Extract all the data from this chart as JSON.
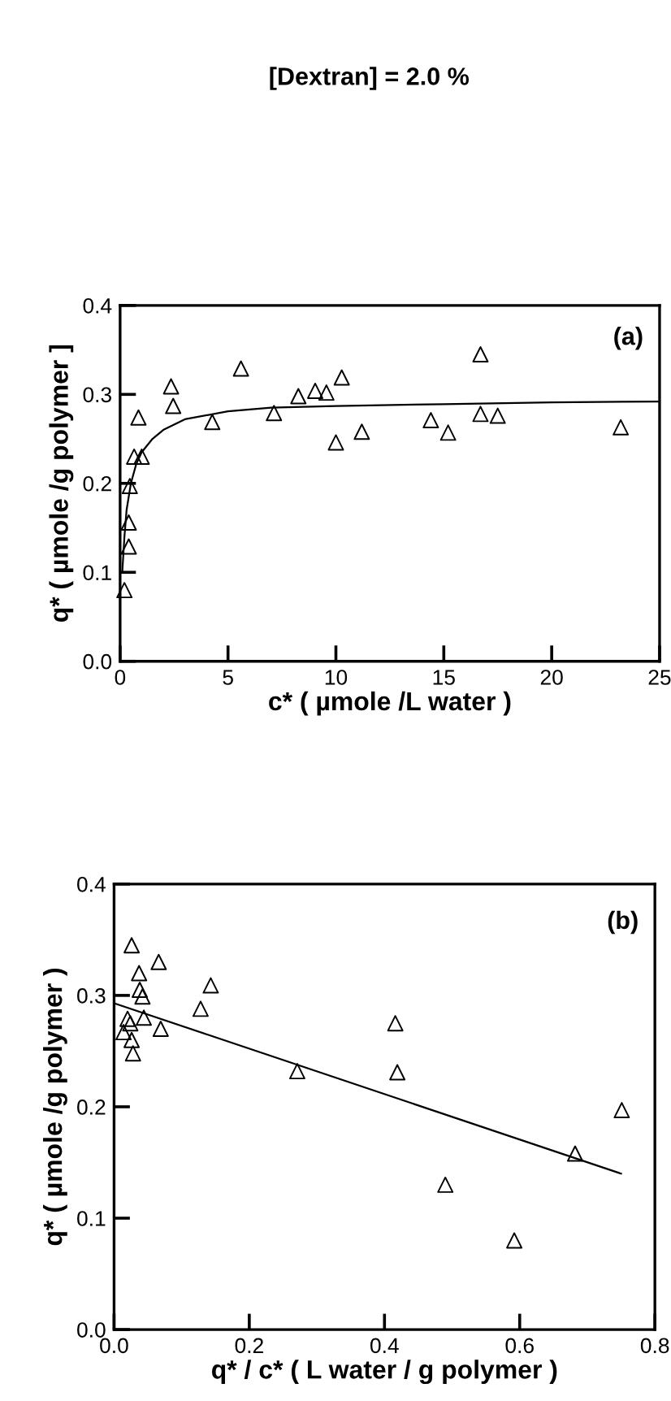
{
  "chart_data": [
    {
      "type": "scatter",
      "title": "[Dextran] = 2.0 %",
      "xlabel": "c* ( µmole /L water )",
      "ylabel": "q* ( µmole /g polymer ]",
      "annotations": [
        "(a)"
      ],
      "xlim": [
        0,
        25
      ],
      "ylim": [
        0.0,
        0.4
      ],
      "xticks": [
        0,
        5,
        10,
        15,
        20,
        25
      ],
      "yticks": [
        {
          "value": 0.0,
          "label": "0.0"
        },
        0.1,
        0.2,
        0.3,
        0.4
      ],
      "grid": false,
      "legend": false,
      "series": [
        {
          "marker": "triangle",
          "color": "#000000",
          "x": [
            0.2,
            0.4,
            0.4,
            0.45,
            0.65,
            1.0,
            0.85,
            2.36,
            2.46,
            4.27,
            5.6,
            7.13,
            8.26,
            9.04,
            9.56,
            10.27,
            10.0,
            11.2,
            14.4,
            15.2,
            16.7,
            16.7,
            17.5,
            23.2
          ],
          "values": [
            0.08,
            0.129,
            0.156,
            0.197,
            0.23,
            0.23,
            0.274,
            0.309,
            0.287,
            0.269,
            0.329,
            0.279,
            0.298,
            0.304,
            0.302,
            0.319,
            0.246,
            0.258,
            0.271,
            0.257,
            0.345,
            0.278,
            0.276,
            0.263
          ]
        },
        {
          "type": "line",
          "marker": "none",
          "line_style": "solid",
          "color": "#000000",
          "x": [
            0.1,
            0.2,
            0.3,
            0.5,
            0.75,
            1,
            1.5,
            2,
            3,
            5,
            7,
            10,
            15,
            20,
            25
          ],
          "values": [
            0.1,
            0.14,
            0.17,
            0.2,
            0.222,
            0.235,
            0.25,
            0.26,
            0.272,
            0.281,
            0.285,
            0.287,
            0.289,
            0.291,
            0.292
          ]
        }
      ]
    },
    {
      "type": "scatter",
      "xlabel": "q* / c* ( L water / g polymer )",
      "ylabel": "q* ( µmole /g polymer )",
      "annotations": [
        "(b)"
      ],
      "xlim": [
        0.0,
        0.8
      ],
      "ylim": [
        0.0,
        0.4
      ],
      "xticks": [
        {
          "value": 0.0,
          "label": "0.0"
        },
        0.2,
        0.4,
        0.6,
        0.8
      ],
      "yticks": [
        {
          "value": 0.0,
          "label": "0.0"
        },
        0.1,
        0.2,
        0.3,
        0.4
      ],
      "grid": false,
      "legend": false,
      "series": [
        {
          "marker": "triangle",
          "color": "#000000",
          "x": [
            0.026,
            0.066,
            0.037,
            0.143,
            0.038,
            0.042,
            0.128,
            0.044,
            0.02,
            0.024,
            0.069,
            0.014,
            0.026,
            0.028,
            0.271,
            0.416,
            0.419,
            0.751,
            0.682,
            0.49,
            0.592
          ],
          "values": [
            0.345,
            0.33,
            0.32,
            0.309,
            0.305,
            0.299,
            0.288,
            0.28,
            0.279,
            0.275,
            0.27,
            0.267,
            0.26,
            0.248,
            0.232,
            0.275,
            0.231,
            0.197,
            0.158,
            0.13,
            0.08
          ]
        },
        {
          "type": "line",
          "marker": "none",
          "line_style": "solid",
          "color": "#000000",
          "x": [
            0.0,
            0.75
          ],
          "values": [
            0.293,
            0.14
          ]
        }
      ]
    }
  ]
}
